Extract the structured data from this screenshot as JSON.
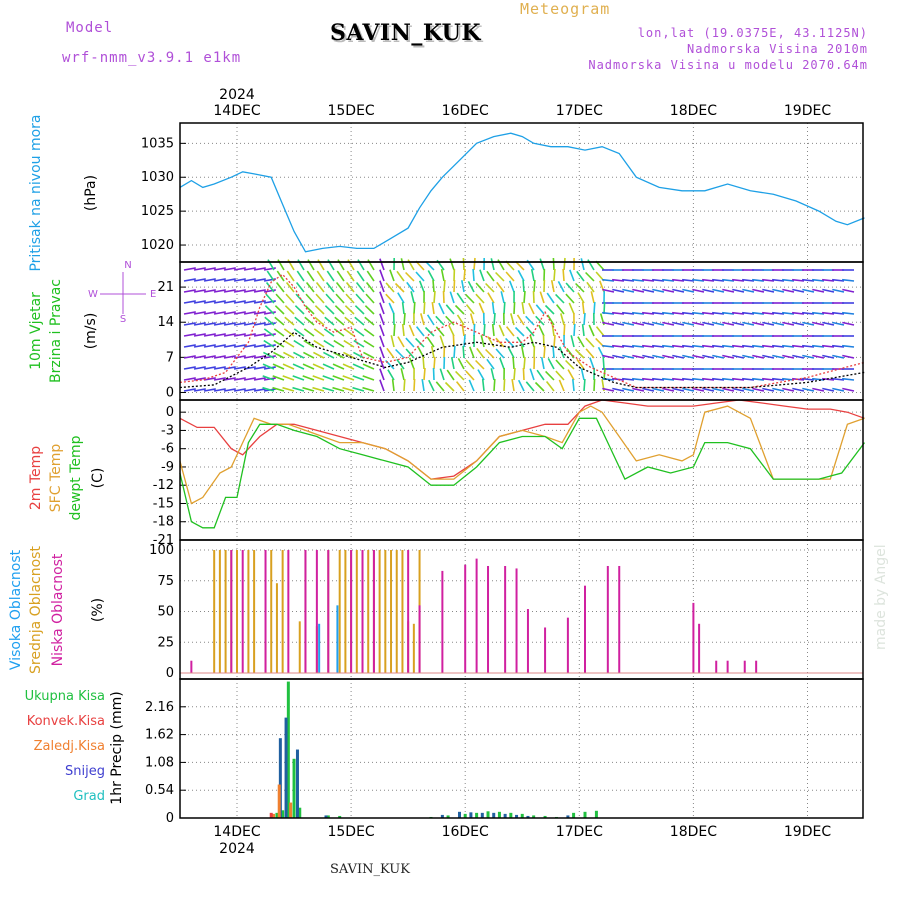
{
  "header": {
    "model_label": "Model",
    "model_name": "wrf-nmm_v3.9.1 e1km",
    "station": "SAVIN_KUK",
    "meteogram": "Meteogram",
    "lonlat": "lon,lat (19.0375E, 43.1125N)",
    "elevation": "Nadmorska Visina 2010m",
    "elevation_model": "Nadmorska Visina u modelu 2070.64m",
    "footer_station": "SAVIN_KUK",
    "credit": "made by Angel",
    "year": "2024"
  },
  "colors": {
    "purple": "#b050d8",
    "orange": "#e0b050",
    "pressure": "#1ea0e6",
    "temp2m": "#e84040",
    "sfc": "#e0a030",
    "dewpt": "#20c020",
    "high_cloud": "#20a0f0",
    "mid_cloud": "#d8a020",
    "low_cloud": "#d020a0",
    "total_precip": "#20c040",
    "conv_precip": "#e84040",
    "frozen_precip": "#f08030",
    "snow": "#4040d0",
    "graupel": "#20c0c0"
  },
  "chart_data": [
    {
      "type": "line",
      "id": "pressure",
      "ylabel_1": "Pritisak na nivou mora",
      "ylabel_2": "(hPa)",
      "yticks": [
        1020,
        1025,
        1030,
        1035
      ],
      "ylim": [
        1017.5,
        1038
      ],
      "x_days": [
        "14DEC",
        "15DEC",
        "16DEC",
        "17DEC",
        "18DEC",
        "19DEC"
      ],
      "series": [
        {
          "x": [
            0,
            0.1,
            0.2,
            0.3,
            0.45,
            0.55,
            0.65,
            0.8,
            0.9,
            1.0,
            1.1,
            1.25,
            1.4,
            1.55,
            1.7,
            1.85,
            2.0,
            2.1,
            2.2,
            2.3,
            2.45,
            2.6,
            2.75,
            2.9,
            3.0,
            3.1,
            3.25,
            3.4,
            3.55,
            3.7,
            3.85,
            4.0,
            4.2,
            4.4,
            4.6,
            4.8,
            5.0,
            5.2,
            5.4,
            5.6,
            5.75,
            5.85,
            6.0
          ],
          "values": [
            1028.5,
            1029.5,
            1028.5,
            1029,
            1030,
            1030.8,
            1030.5,
            1030,
            1026,
            1022,
            1019,
            1019.5,
            1019.8,
            1019.5,
            1019.5,
            1021,
            1022.5,
            1025.5,
            1028,
            1030,
            1032.5,
            1035,
            1036,
            1036.5,
            1036,
            1035,
            1034.5,
            1034.5,
            1034,
            1034.5,
            1033.5,
            1030,
            1028.5,
            1028,
            1028,
            1029,
            1028,
            1027.5,
            1026.5,
            1025,
            1023.5,
            1023,
            1024
          ]
        }
      ]
    },
    {
      "type": "line",
      "id": "wind",
      "ylabel_1": "10m Vjetar",
      "ylabel_2": "Brzina i Pravac",
      "ylabel_3": "(m/s)",
      "compass": "N",
      "compass_s": "S",
      "compass_w": "W",
      "compass_e": "E",
      "yticks": [
        0,
        7,
        14,
        21
      ],
      "ylim": [
        -1.5,
        26
      ],
      "series": [
        {
          "name": "gust",
          "x": [
            0,
            0.2,
            0.4,
            0.5,
            0.6,
            0.7,
            0.8,
            0.9,
            1.0,
            1.1,
            1.2,
            1.35,
            1.5,
            1.6,
            1.8,
            2.0,
            2.2,
            2.4,
            2.6,
            2.8,
            3.0,
            3.1,
            3.2,
            3.3,
            3.4,
            3.6,
            3.8,
            4.0,
            4.5,
            5.0,
            5.5,
            6.0
          ],
          "values": [
            2,
            2.5,
            4,
            7,
            10,
            17,
            22,
            23.5,
            21,
            17,
            14,
            12,
            13,
            7,
            6,
            7,
            12,
            14,
            12,
            10,
            10,
            12,
            16,
            12,
            8,
            5,
            3,
            1,
            1,
            1,
            3,
            6
          ]
        },
        {
          "name": "wind",
          "x": [
            0,
            0.3,
            0.6,
            0.8,
            1.0,
            1.2,
            1.5,
            1.8,
            2.0,
            2.3,
            2.6,
            2.9,
            3.1,
            3.3,
            3.5,
            3.8,
            4.0,
            4.5,
            5.0,
            5.5,
            6.0
          ],
          "values": [
            1,
            1.5,
            5,
            8,
            12,
            9,
            7,
            5,
            6,
            9,
            10,
            9,
            10,
            9,
            5,
            2,
            1,
            1,
            1,
            2,
            4
          ]
        }
      ]
    },
    {
      "type": "line",
      "id": "temperature",
      "ylabel_1": "2m Temp",
      "ylabel_2": "SFC Temp",
      "ylabel_3": "dewpt Temp",
      "ylabel_4": "(C)",
      "yticks": [
        0,
        -3,
        -6,
        -9,
        -12,
        -15,
        -18,
        -21
      ],
      "ylim": [
        -21,
        2
      ],
      "series": [
        {
          "name": "2m Temp",
          "x": [
            0,
            0.15,
            0.3,
            0.45,
            0.55,
            0.7,
            0.85,
            1.0,
            1.2,
            1.4,
            1.6,
            1.8,
            2.0,
            2.2,
            2.4,
            2.6,
            2.8,
            3.0,
            3.2,
            3.4,
            3.55,
            3.7,
            3.9,
            4.1,
            4.3,
            4.5,
            4.7,
            4.9,
            5.1,
            5.3,
            5.5,
            5.7,
            5.85,
            6.0
          ],
          "values": [
            -1,
            -2.5,
            -2.5,
            -6,
            -7,
            -4,
            -2,
            -2,
            -3,
            -4,
            -5,
            -6,
            -8,
            -11,
            -10.5,
            -8,
            -4,
            -3,
            -2,
            -2,
            1,
            2,
            1.5,
            1,
            1,
            1,
            1.5,
            2,
            1.5,
            1,
            0.5,
            0.5,
            0,
            -1
          ]
        },
        {
          "name": "SFC Temp",
          "x": [
            0,
            0.1,
            0.2,
            0.35,
            0.45,
            0.55,
            0.65,
            0.8,
            0.95,
            1.1,
            1.25,
            1.4,
            1.6,
            1.8,
            2.0,
            2.2,
            2.4,
            2.6,
            2.8,
            3.0,
            3.2,
            3.35,
            3.5,
            3.6,
            3.7,
            3.85,
            4.0,
            4.2,
            4.4,
            4.5,
            4.6,
            4.8,
            5.0,
            5.2,
            5.4,
            5.5,
            5.7,
            5.85,
            6.0
          ],
          "values": [
            -8,
            -15,
            -14,
            -10,
            -9,
            -5,
            -1,
            -2,
            -2,
            -3,
            -4,
            -5,
            -5,
            -6,
            -8,
            -11,
            -11,
            -8,
            -4,
            -3,
            -4,
            -5,
            0,
            1,
            0,
            -4,
            -8,
            -7,
            -8,
            -7,
            0,
            1,
            -1,
            -11,
            -11,
            -11,
            -11,
            -2,
            -1
          ]
        },
        {
          "name": "dewpt Temp",
          "x": [
            0,
            0.1,
            0.2,
            0.3,
            0.4,
            0.5,
            0.6,
            0.7,
            0.85,
            1.0,
            1.2,
            1.4,
            1.6,
            1.8,
            2.0,
            2.2,
            2.4,
            2.6,
            2.8,
            3.0,
            3.2,
            3.35,
            3.5,
            3.65,
            3.75,
            3.9,
            4.1,
            4.3,
            4.5,
            4.6,
            4.8,
            5.0,
            5.2,
            5.4,
            5.6,
            5.8,
            6.0
          ],
          "values": [
            -10,
            -18,
            -19,
            -19,
            -14,
            -14,
            -5,
            -2,
            -2,
            -3,
            -4,
            -6,
            -7,
            -8,
            -9,
            -12,
            -12,
            -9,
            -5,
            -4,
            -4,
            -6,
            -1,
            -1,
            -5,
            -11,
            -9,
            -10,
            -9,
            -5,
            -5,
            -6,
            -11,
            -11,
            -11,
            -10,
            -5
          ]
        }
      ]
    },
    {
      "type": "bar",
      "id": "cloud",
      "ylabel_1": "Visoka Oblacnost",
      "ylabel_2": "Srednja Oblacnost",
      "ylabel_3": "Niska Oblacnost",
      "ylabel_4": "(%)",
      "yticks": [
        0,
        25,
        50,
        75,
        100
      ],
      "ylim": [
        0,
        100
      ],
      "series": [
        {
          "name": "Srednja Oblacnost",
          "x": [
            0.3,
            0.35,
            0.4,
            0.45,
            0.5,
            0.6,
            0.65,
            0.75,
            0.8,
            0.85,
            0.9,
            1.05,
            1.1,
            1.2,
            1.3,
            1.4,
            1.45,
            1.5,
            1.55,
            1.6,
            1.65,
            1.7,
            1.75,
            1.8,
            1.85,
            1.9,
            1.95,
            2.0,
            2.05,
            2.1
          ],
          "values": [
            100,
            100,
            100,
            100,
            100,
            100,
            100,
            25,
            100,
            73,
            100,
            42,
            100,
            38,
            100,
            100,
            100,
            100,
            100,
            100,
            100,
            100,
            100,
            100,
            100,
            100,
            100,
            42,
            40,
            100
          ]
        },
        {
          "name": "Niska Oblacnost",
          "x": [
            0.1,
            0.45,
            0.55,
            0.75,
            0.95,
            1.1,
            1.2,
            1.3,
            1.5,
            1.6,
            1.7,
            2.0,
            2.1,
            2.3,
            2.5,
            2.6,
            2.7,
            2.85,
            2.95,
            3.05,
            3.2,
            3.4,
            3.55,
            3.75,
            3.85,
            4.5,
            4.55,
            4.7,
            4.8,
            4.95,
            5.05
          ],
          "values": [
            10,
            100,
            100,
            100,
            100,
            100,
            100,
            100,
            100,
            100,
            100,
            100,
            55,
            83,
            88,
            93,
            87,
            87,
            85,
            52,
            37,
            45,
            71,
            87,
            87,
            57,
            40,
            10,
            10,
            10,
            10
          ]
        },
        {
          "name": "Visoka Oblacnost",
          "x": [
            1.22,
            1.38
          ],
          "values": [
            40,
            55
          ]
        }
      ]
    },
    {
      "type": "bar",
      "id": "precip",
      "ylabel_1": "1hr Precip",
      "ylabel_2": "(mm)",
      "legend": [
        "Ukupna Kisa",
        "Konvek.Kisa",
        "Zaledj.Kisa",
        "Snijeg",
        "Grad"
      ],
      "yticks": [
        0,
        0.54,
        1.08,
        1.62,
        2.16
      ],
      "ylim": [
        0,
        2.7
      ],
      "series": [
        {
          "name": "Ukupna Kisa",
          "x": [
            0.85,
            0.9,
            0.95,
            1.0,
            1.05,
            1.3,
            1.4,
            2.2,
            2.35,
            2.5,
            2.6,
            2.7,
            2.8,
            2.9,
            3.0,
            3.1,
            3.2,
            3.3,
            3.45,
            3.55,
            3.65
          ],
          "values": [
            0.1,
            0.15,
            2.65,
            1.15,
            0.2,
            0.05,
            0.04,
            0.02,
            0.05,
            0.08,
            0.1,
            0.13,
            0.12,
            0.1,
            0.08,
            0.05,
            0.04,
            0.02,
            0.1,
            0.12,
            0.14
          ]
        },
        {
          "name": "Snijeg",
          "x": [
            0.88,
            0.93,
            1.03,
            1.28,
            2.3,
            2.45,
            2.55,
            2.65,
            2.75,
            2.85,
            2.95,
            3.05,
            3.4
          ],
          "values": [
            1.55,
            1.95,
            1.33,
            0.05,
            0.06,
            0.12,
            0.11,
            0.1,
            0.1,
            0.08,
            0.06,
            0.04,
            0.05
          ]
        },
        {
          "name": "Zaledj.Kisa",
          "x": [
            0.82,
            0.87,
            0.97
          ],
          "values": [
            0.08,
            0.65,
            0.3
          ]
        },
        {
          "name": "Konvek.Kisa",
          "x": [
            0.8
          ],
          "values": [
            0.1
          ]
        }
      ]
    }
  ]
}
